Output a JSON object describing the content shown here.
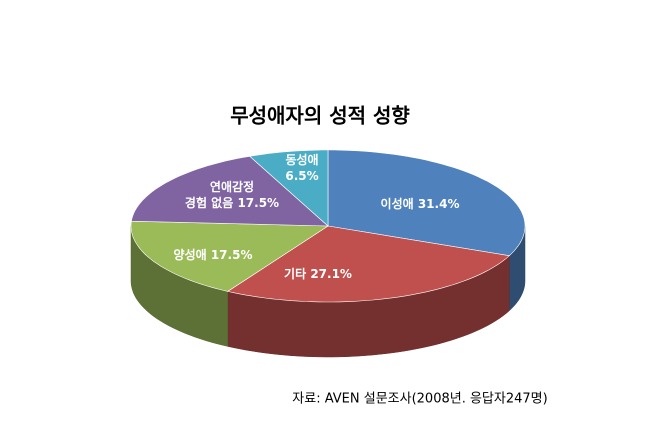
{
  "chart_data": {
    "type": "pie3d",
    "title": "무성애자의 성적 성향",
    "categories": [
      "이성애",
      "기타",
      "양성애",
      "연애감정\n경험 없음",
      "동성애"
    ],
    "values": [
      31.4,
      27.1,
      17.5,
      17.5,
      6.5
    ],
    "value_labels": [
      "31.4%",
      "27.1%",
      "17.5%",
      "17.5%",
      "6.5%"
    ],
    "colors": [
      "#4f81bd",
      "#c0504d",
      "#9bbb59",
      "#8064a2",
      "#4bacc6"
    ],
    "source": "자료: AVEN 설문조사(2008년. 응답자247명)"
  }
}
